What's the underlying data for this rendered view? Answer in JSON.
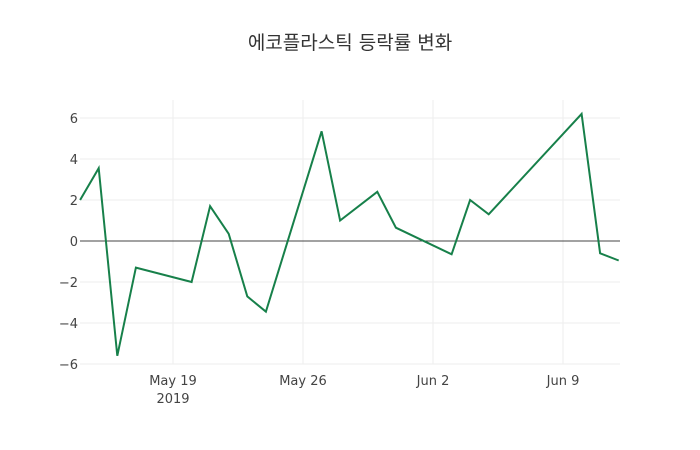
{
  "chart_data": {
    "type": "line",
    "title": "에코플라스틱 등락률 변화",
    "xlabel": "",
    "ylabel": "",
    "x": [
      "2019-05-14",
      "2019-05-15",
      "2019-05-16",
      "2019-05-17",
      "2019-05-20",
      "2019-05-21",
      "2019-05-22",
      "2019-05-23",
      "2019-05-24",
      "2019-05-27",
      "2019-05-28",
      "2019-05-30",
      "2019-05-31",
      "2019-06-03",
      "2019-06-04",
      "2019-06-05",
      "2019-06-10",
      "2019-06-11",
      "2019-06-12"
    ],
    "series": [
      {
        "name": "등락률",
        "color": "#17804a",
        "values": [
          2.0,
          3.55,
          -5.6,
          -1.3,
          -2.0,
          1.7,
          0.35,
          -2.7,
          -3.45,
          5.35,
          1.0,
          2.4,
          0.65,
          -0.65,
          2.0,
          1.3,
          6.2,
          -0.6,
          -0.95
        ]
      }
    ],
    "ylim": [
      -6,
      7
    ],
    "yticks": [
      6,
      4,
      2,
      0,
      -2,
      -4,
      -6
    ],
    "ytick_labels": [
      "6",
      "4",
      "2",
      "0",
      "−2",
      "−4",
      "−6"
    ],
    "xticks": [
      {
        "date": "2019-05-19",
        "label": "May 19",
        "sublabel": "2019"
      },
      {
        "date": "2019-05-26",
        "label": "May 26",
        "sublabel": ""
      },
      {
        "date": "2019-06-02",
        "label": "Jun 2",
        "sublabel": ""
      },
      {
        "date": "2019-06-09",
        "label": "Jun 9",
        "sublabel": ""
      }
    ],
    "grid": true,
    "zero_line": true,
    "legend": "none"
  }
}
